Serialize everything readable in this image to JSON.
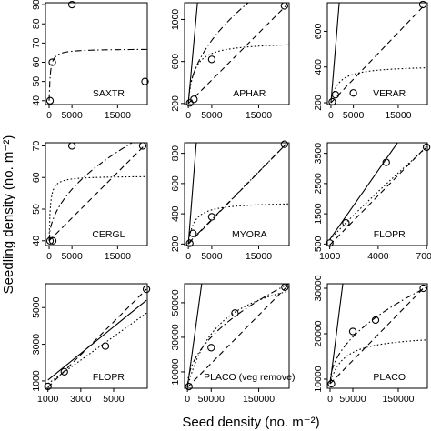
{
  "figure": {
    "ylabel": "Seedling density (no. m⁻²)",
    "xlabel": "Seed density (no. m⁻²)"
  },
  "chart_data": [
    {
      "type": "scatter",
      "panel_label": "SAXTR",
      "grid": false,
      "xlim": [
        -800,
        21500
      ],
      "ylim": [
        38,
        91
      ],
      "xticks": [
        0,
        5000,
        15000
      ],
      "yticks": [
        40,
        50,
        60,
        70,
        80,
        90
      ],
      "points": [
        [
          200,
          40
        ],
        [
          700,
          60
        ],
        [
          5000,
          90
        ],
        [
          21000,
          50
        ]
      ],
      "curves": [
        {
          "style": "dashdot",
          "model": "mm",
          "a": 67,
          "b": 250,
          "base": 40
        }
      ]
    },
    {
      "type": "scatter",
      "panel_label": "APHAR",
      "grid": false,
      "xlim": [
        -800,
        21500
      ],
      "ylim": [
        190,
        1160
      ],
      "xticks": [
        0,
        5000,
        15000
      ],
      "yticks": [
        200,
        600,
        1000
      ],
      "points": [
        [
          300,
          205
        ],
        [
          1200,
          240
        ],
        [
          5000,
          620
        ],
        [
          20500,
          1130
        ]
      ],
      "curves": [
        {
          "style": "solid",
          "model": "line",
          "x0": 0,
          "y0": 200,
          "x1": 1950,
          "y1": 1160
        },
        {
          "style": "dashed",
          "model": "line",
          "x0": 0,
          "y0": 200,
          "x1": 20800,
          "y1": 1130
        },
        {
          "style": "dashdot",
          "model": "power",
          "a": 8.5,
          "p": 0.5,
          "base": 200
        },
        {
          "style": "dotted",
          "model": "mm",
          "a": 790,
          "b": 1200,
          "base": 200
        }
      ]
    },
    {
      "type": "scatter",
      "panel_label": "VERAR",
      "grid": false,
      "xlim": [
        -800,
        21500
      ],
      "ylim": [
        190,
        760
      ],
      "xticks": [
        0,
        5000,
        15000
      ],
      "yticks": [
        200,
        400,
        600
      ],
      "points": [
        [
          300,
          205
        ],
        [
          1000,
          245
        ],
        [
          5000,
          255
        ],
        [
          20500,
          750
        ]
      ],
      "curves": [
        {
          "style": "solid",
          "model": "line",
          "x0": 0,
          "y0": 200,
          "x1": 1850,
          "y1": 760
        },
        {
          "style": "dashed",
          "model": "line",
          "x0": 0,
          "y0": 200,
          "x1": 20800,
          "y1": 745
        },
        {
          "style": "dotted",
          "model": "mm",
          "a": 410,
          "b": 1600,
          "base": 200
        }
      ]
    },
    {
      "type": "scatter",
      "panel_label": "CERGL",
      "grid": false,
      "xlim": [
        -800,
        21500
      ],
      "ylim": [
        38.5,
        71
      ],
      "xticks": [
        0,
        5000,
        15000
      ],
      "yticks": [
        40,
        50,
        60,
        70
      ],
      "points": [
        [
          200,
          40
        ],
        [
          800,
          40
        ],
        [
          5000,
          70
        ],
        [
          20500,
          70
        ]
      ],
      "curves": [
        {
          "style": "dashed",
          "model": "line",
          "x0": 0,
          "y0": 40,
          "x1": 20800,
          "y1": 70
        },
        {
          "style": "dashdot",
          "model": "power",
          "a": 0.23,
          "p": 0.5,
          "base": 40
        },
        {
          "style": "dotted",
          "model": "mm",
          "a": 60.5,
          "b": 250,
          "base": 40
        }
      ]
    },
    {
      "type": "scatter",
      "panel_label": "MYORA",
      "grid": false,
      "xlim": [
        -800,
        21500
      ],
      "ylim": [
        190,
        870
      ],
      "xticks": [
        0,
        5000,
        15000
      ],
      "yticks": [
        200,
        400,
        600,
        800
      ],
      "points": [
        [
          300,
          205
        ],
        [
          1000,
          270
        ],
        [
          5000,
          380
        ],
        [
          20500,
          860
        ]
      ],
      "curves": [
        {
          "style": "solid",
          "model": "line",
          "x0": 0,
          "y0": 200,
          "x1": 1700,
          "y1": 870
        },
        {
          "style": "dashed",
          "model": "line",
          "x0": 0,
          "y0": 200,
          "x1": 20800,
          "y1": 860
        },
        {
          "style": "dashdot",
          "model": "line",
          "x0": 0,
          "y0": 205,
          "x1": 20800,
          "y1": 860
        },
        {
          "style": "dotted",
          "model": "mm",
          "a": 480,
          "b": 1200,
          "base": 200
        }
      ]
    },
    {
      "type": "scatter",
      "panel_label": "FLOPR",
      "grid": false,
      "xlim": [
        850,
        7050
      ],
      "ylim": [
        450,
        3850
      ],
      "xticks": [
        1000,
        4000,
        7000
      ],
      "yticks": [
        500,
        1500,
        2500,
        3500
      ],
      "points": [
        [
          1000,
          530
        ],
        [
          2000,
          1200
        ],
        [
          4500,
          3200
        ],
        [
          7000,
          3700
        ]
      ],
      "curves": [
        {
          "style": "solid",
          "model": "line",
          "x0": 1000,
          "y0": 650,
          "x1": 5200,
          "y1": 3850
        },
        {
          "style": "dashed",
          "model": "line",
          "x0": 1000,
          "y0": 470,
          "x1": 7000,
          "y1": 3730
        },
        {
          "style": "dotted",
          "model": "power",
          "a": 1.28,
          "p": 0.9,
          "base": 0,
          "xmin": 1000
        }
      ]
    },
    {
      "type": "scatter",
      "panel_label": "FLOPR",
      "grid": false,
      "xlim": [
        850,
        7050
      ],
      "ylim": [
        600,
        6300
      ],
      "xticks": [
        1000,
        3000,
        5000
      ],
      "yticks": [
        1000,
        3000,
        5000
      ],
      "points": [
        [
          1000,
          700
        ],
        [
          2000,
          1500
        ],
        [
          4500,
          2900
        ],
        [
          7000,
          6000
        ]
      ],
      "curves": [
        {
          "style": "solid",
          "model": "line",
          "x0": 1000,
          "y0": 1050,
          "x1": 7000,
          "y1": 5400
        },
        {
          "style": "dashed",
          "model": "line",
          "x0": 1000,
          "y0": 650,
          "x1": 7000,
          "y1": 6000
        },
        {
          "style": "dotted",
          "model": "line",
          "x0": 1000,
          "y0": 850,
          "x1": 7000,
          "y1": 4700
        }
      ]
    },
    {
      "type": "scatter",
      "panel_label": "PLACO (veg remove)",
      "grid": false,
      "xlim": [
        -6000,
        214000
      ],
      "ylim": [
        500,
        61000
      ],
      "xticks": [
        0,
        50000,
        150000
      ],
      "yticks": [
        10000,
        30000,
        50000
      ],
      "points": [
        [
          3000,
          1500
        ],
        [
          50000,
          24000
        ],
        [
          100000,
          44000
        ],
        [
          205000,
          59000
        ]
      ],
      "curves": [
        {
          "style": "solid",
          "model": "line",
          "x0": 0,
          "y0": 1000,
          "x1": 30000,
          "y1": 61000
        },
        {
          "style": "dashed",
          "model": "line",
          "x0": 0,
          "y0": 1000,
          "x1": 210000,
          "y1": 59500
        },
        {
          "style": "dashdot",
          "model": "power",
          "a": 130,
          "p": 0.5,
          "base": 1000
        },
        {
          "style": "dotted",
          "model": "mm",
          "a": 75000,
          "b": 70000,
          "base": 1000
        }
      ]
    },
    {
      "type": "scatter",
      "panel_label": "PLACO",
      "grid": false,
      "xlim": [
        -6000,
        214000
      ],
      "ylim": [
        8000,
        31000
      ],
      "xticks": [
        0,
        50000,
        150000
      ],
      "yticks": [
        10000,
        20000,
        30000
      ],
      "points": [
        [
          3000,
          9000
        ],
        [
          50000,
          20500
        ],
        [
          100000,
          23000
        ],
        [
          205000,
          30000
        ]
      ],
      "curves": [
        {
          "style": "solid",
          "model": "line",
          "x0": 0,
          "y0": 9000,
          "x1": 28000,
          "y1": 31000
        },
        {
          "style": "dashed",
          "model": "line",
          "x0": 0,
          "y0": 9000,
          "x1": 210000,
          "y1": 30500
        },
        {
          "style": "dashdot",
          "model": "power",
          "a": 46,
          "p": 0.5,
          "base": 9000
        },
        {
          "style": "dotted",
          "model": "mm",
          "a": 20000,
          "b": 30000,
          "base": 9000
        }
      ]
    }
  ]
}
